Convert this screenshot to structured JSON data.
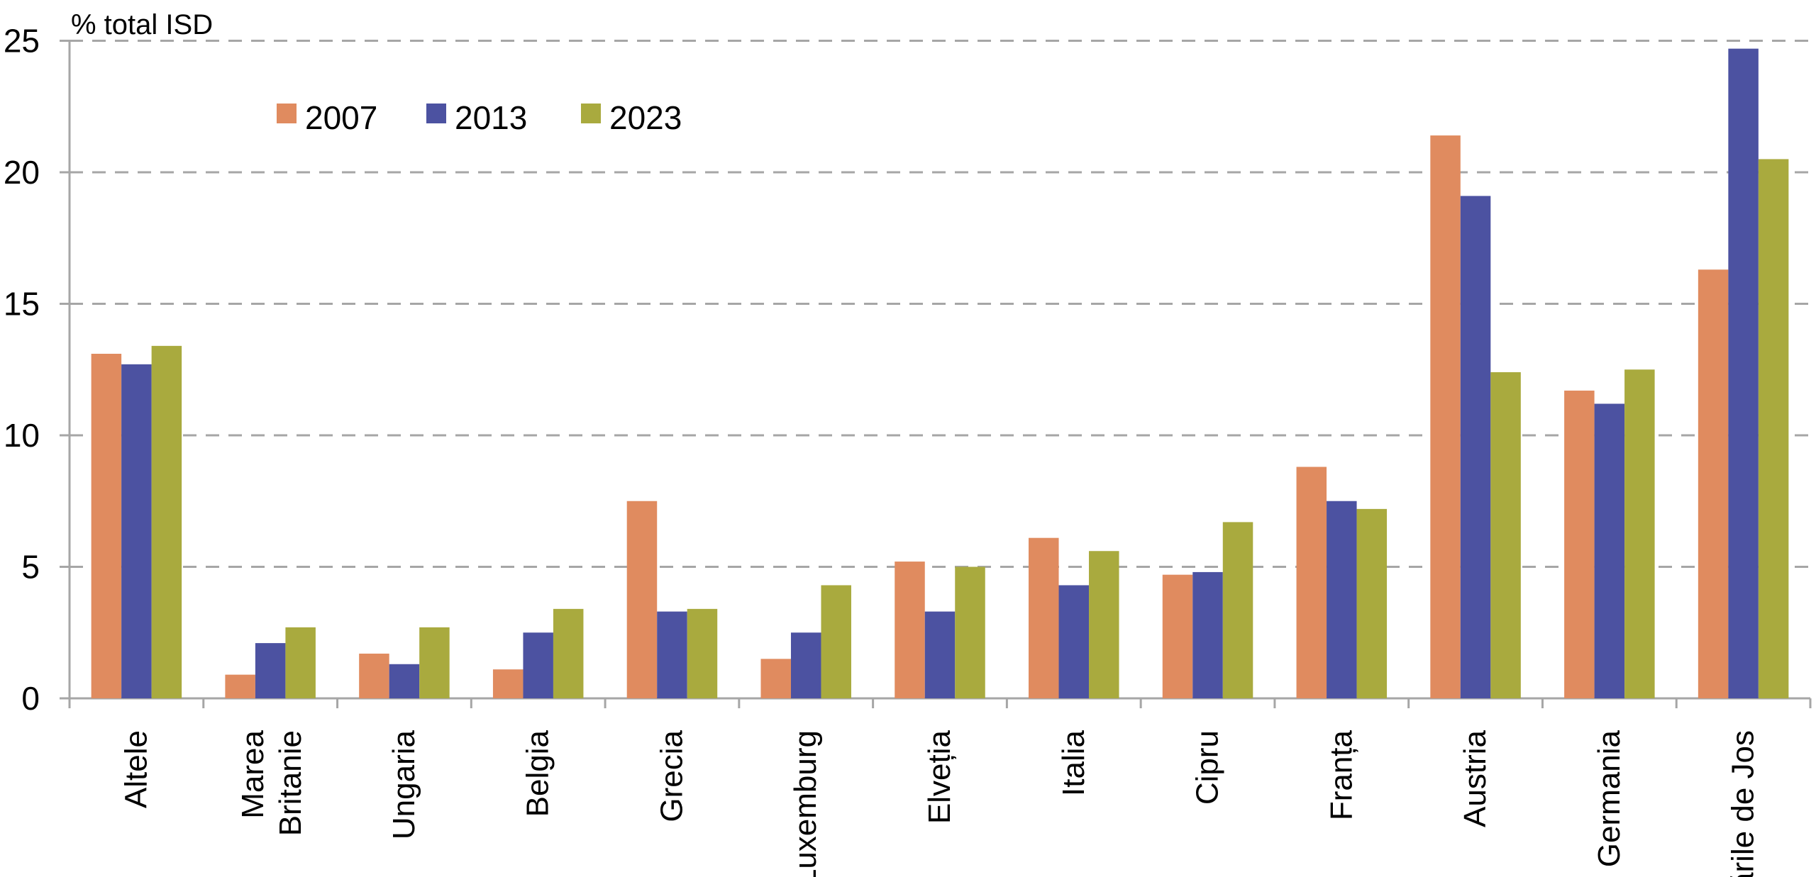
{
  "chart_data": {
    "type": "bar",
    "title": "% total ISD",
    "xlabel": "",
    "ylabel": "% total ISD",
    "ylim": [
      0,
      25
    ],
    "yticks": [
      0,
      5,
      10,
      15,
      20,
      25
    ],
    "grid": "horizontal-dashed",
    "legend_position": "top-left-inset",
    "categories": [
      "Altele",
      "Marea Britanie",
      "Ungaria",
      "Belgia",
      "Grecia",
      "Luxemburg",
      "Elveția",
      "Italia",
      "Cipru",
      "Franța",
      "Austria",
      "Germania",
      "Țările de Jos"
    ],
    "category_label_lines": [
      [
        "Altele"
      ],
      [
        "Marea",
        "Britanie"
      ],
      [
        "Ungaria"
      ],
      [
        "Belgia"
      ],
      [
        "Grecia"
      ],
      [
        "Luxemburg"
      ],
      [
        "Elveția"
      ],
      [
        "Italia"
      ],
      [
        "Cipru"
      ],
      [
        "Franța"
      ],
      [
        "Austria"
      ],
      [
        "Germania"
      ],
      [
        "Țările de Jos"
      ]
    ],
    "series": [
      {
        "name": "2007",
        "color": "#E08B5F",
        "values": [
          13.1,
          0.9,
          1.7,
          1.1,
          7.5,
          1.5,
          5.2,
          6.1,
          4.7,
          8.8,
          21.4,
          11.7,
          16.3
        ]
      },
      {
        "name": "2013",
        "color": "#4C52A1",
        "values": [
          12.7,
          2.1,
          1.3,
          2.5,
          3.3,
          2.5,
          3.3,
          4.3,
          4.8,
          7.5,
          19.1,
          11.2,
          24.7
        ]
      },
      {
        "name": "2023",
        "color": "#A9AA3E",
        "values": [
          13.4,
          2.7,
          2.7,
          3.4,
          3.4,
          4.3,
          5.0,
          5.6,
          6.7,
          7.2,
          12.4,
          12.5,
          20.5
        ]
      }
    ]
  },
  "colors": {
    "background": "#FFFFFF",
    "axis": "#A6A6A6",
    "gridline": "#A6A6A6",
    "text": "#000000"
  }
}
